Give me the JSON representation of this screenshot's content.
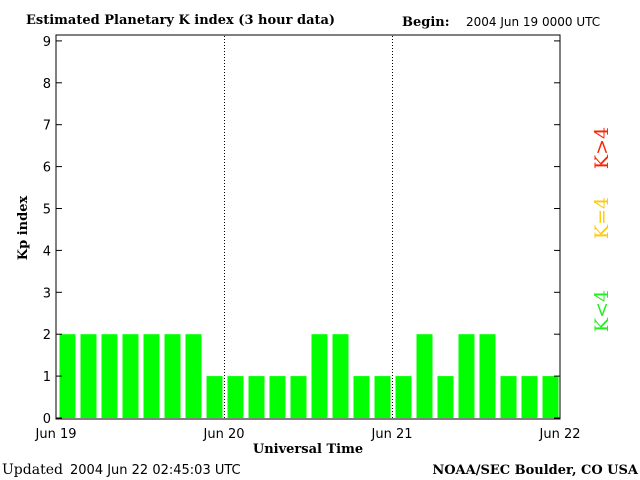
{
  "chart_data": {
    "type": "bar",
    "title": "Estimated Planetary K index (3 hour data)",
    "begin_label": "Begin:",
    "begin_value": "2004 Jun 19 0000 UTC",
    "ylabel": "Kp index",
    "xlabel": "Universal Time",
    "ylim": [
      0,
      9
    ],
    "y_ticks": [
      "0",
      "1",
      "2",
      "3",
      "4",
      "5",
      "6",
      "7",
      "8",
      "9"
    ],
    "x_ticks": [
      "Jun 19",
      "Jun 20",
      "Jun 21",
      "Jun 22"
    ],
    "grid": false,
    "values": [
      2,
      2,
      2,
      2,
      2,
      2,
      2,
      1,
      1,
      1,
      1,
      1,
      2,
      2,
      1,
      1,
      1,
      2,
      1,
      2,
      2,
      1,
      1,
      1
    ],
    "bar_color": "#00ff00",
    "legend": [
      {
        "label": "K<4",
        "color": "#22ee22"
      },
      {
        "label": "K=4",
        "color": "#ffcc00"
      },
      {
        "label": "K>4",
        "color": "#ff2200"
      }
    ]
  },
  "footer": {
    "updated_label": "Updated",
    "updated_value": "2004 Jun 22 02:45:03 UTC",
    "source": "NOAA/SEC Boulder, CO USA"
  }
}
